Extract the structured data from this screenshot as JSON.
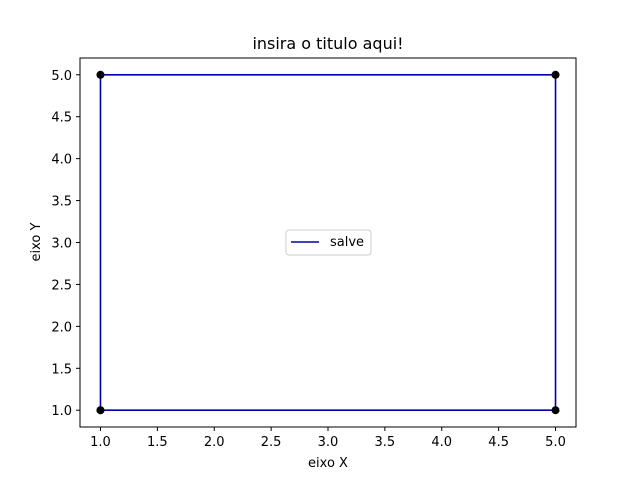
{
  "chart_data": {
    "type": "line",
    "title": "insira o titulo aqui!",
    "xlabel": "eixo X",
    "ylabel": "eixo Y",
    "xlim": [
      0.82,
      5.18
    ],
    "ylim": [
      0.8,
      5.2
    ],
    "x_ticks": [
      "1.0",
      "1.5",
      "2.0",
      "2.5",
      "3.0",
      "3.5",
      "4.0",
      "4.5",
      "5.0"
    ],
    "y_ticks": [
      "1.0",
      "1.5",
      "2.0",
      "2.5",
      "3.0",
      "3.5",
      "4.0",
      "4.5",
      "5.0"
    ],
    "grid": false,
    "legend_position": "center",
    "series": [
      {
        "name": "salve",
        "color": "#0000aa",
        "marker_color": "#000000",
        "x": [
          1,
          1,
          5,
          5,
          1
        ],
        "y": [
          1,
          5,
          5,
          1,
          1
        ]
      }
    ]
  }
}
